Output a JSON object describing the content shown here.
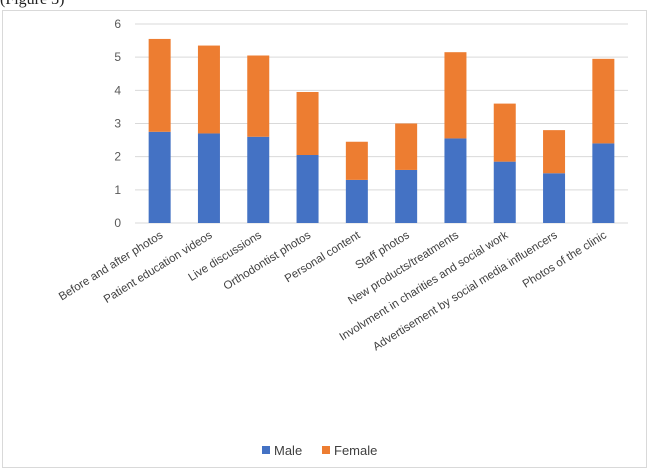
{
  "caption_fragment": "(Figure 3)",
  "chart_data": {
    "type": "bar",
    "stacked": true,
    "categories": [
      "Before and after photos",
      "Patient education videos",
      "Live discussions",
      "Orthodontist photos",
      "Personal content",
      "Staff photos",
      "New products/treatments",
      "Involvment in charities and social work",
      "Advertisement by social media influencers",
      "Photos of the clinic"
    ],
    "series": [
      {
        "name": "Male",
        "color": "#4472c4",
        "values": [
          2.75,
          2.7,
          2.6,
          2.05,
          1.3,
          1.6,
          2.55,
          1.85,
          1.5,
          2.4
        ]
      },
      {
        "name": "Female",
        "color": "#ed7d31",
        "values": [
          2.8,
          2.65,
          2.45,
          1.9,
          1.15,
          1.4,
          2.6,
          1.75,
          1.3,
          2.55
        ]
      }
    ],
    "ylim": [
      0,
      6
    ],
    "yticks": [
      "0",
      "1",
      "2",
      "3",
      "4",
      "5",
      "6"
    ],
    "grid": true,
    "legend": "bottom"
  }
}
